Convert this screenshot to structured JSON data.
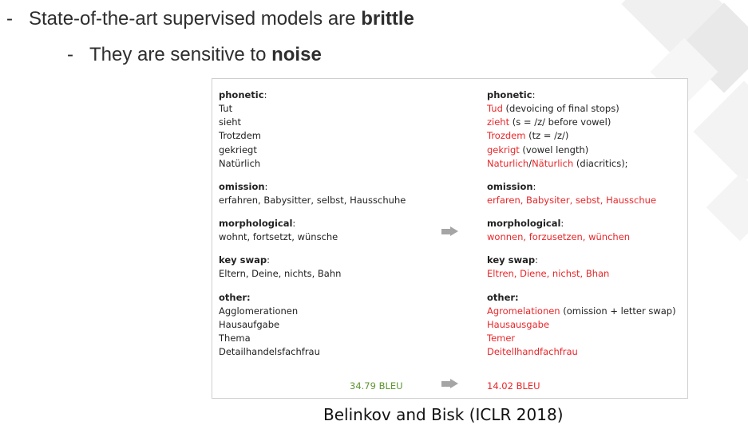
{
  "bullets": {
    "b1": {
      "pre": "State-of-the-art supervised models are ",
      "bold": "brittle"
    },
    "b2": {
      "pre": "They are sensitive to ",
      "bold": "noise"
    }
  },
  "left": {
    "phonetic_head": "phonetic",
    "phonetic_items": [
      "Tut",
      "sieht",
      "Trotzdem",
      "gekriegt",
      "Natürlich"
    ],
    "omission_head": "omission",
    "omission_line": "erfahren, Babysitter, selbst, Hausschuhe",
    "morph_head": "morphological",
    "morph_line": "wohnt, fortsetzt, wünsche",
    "key_head": "key swap",
    "key_line": "Eltern, Deine, nichts, Bahn",
    "other_head": "other:",
    "other_items": [
      "Agglomerationen",
      "Hausaufgabe",
      "Thema",
      "Detailhandelsfachfrau"
    ],
    "score": "34.79 BLEU"
  },
  "right": {
    "phonetic_head": "phonetic",
    "phonetic": [
      {
        "red": "Tud",
        "note": " (devoicing of final stops)"
      },
      {
        "red": "zieht",
        "note": " (s = /z/ before vowel)"
      },
      {
        "red": "Trozdem",
        "note": " (tz = /z/)"
      },
      {
        "red": "gekrigt",
        "note": " (vowel length)"
      },
      {
        "red": "Naturlich",
        "sep": "/",
        "red2": "Näturlich",
        "note": " (diacritics);"
      }
    ],
    "omission_head": "omission",
    "omission_red": "erfaren, Babysiter, sebst, Hausschue",
    "morph_head": "morphological",
    "morph_red": "wonnen, forzusetzen, wünchen",
    "key_head": "key swap",
    "key_red": "Eltren, Diene, nichst, Bhan",
    "other_head": "other:",
    "other": [
      {
        "red": "Agromelationen",
        "note": " (omission + letter swap)"
      },
      {
        "red": "Hausausgabe",
        "note": ""
      },
      {
        "red": "Temer",
        "note": ""
      },
      {
        "red": "Deitellhandfachfrau",
        "note": ""
      }
    ],
    "score": "14.02 BLEU"
  },
  "colon": ":",
  "caption": "Belinkov and Bisk (ICLR 2018)",
  "colors": {
    "red": "#e8272a",
    "green": "#5e9632",
    "arrow": "#a5a5a5"
  }
}
